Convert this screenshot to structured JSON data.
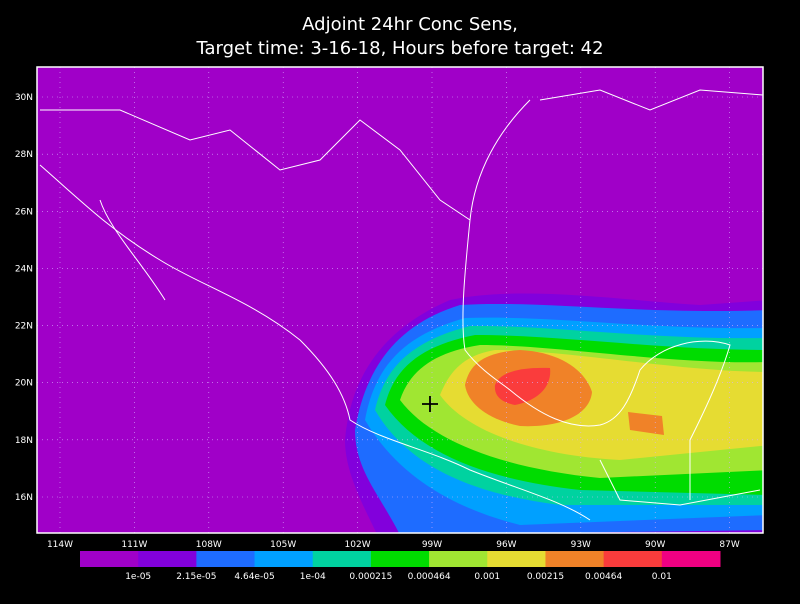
{
  "title": {
    "line1": "Adjoint 24hr Conc Sens,",
    "line2": "Target time: 3-16-18, Hours before target: 42"
  },
  "map": {
    "lat_labels": [
      "30N",
      "28N",
      "26N",
      "24N",
      "22N",
      "20N",
      "18N",
      "16N"
    ],
    "lon_labels": [
      "114W",
      "111W",
      "108W",
      "105W",
      "102W",
      "99W",
      "96W",
      "93W",
      "90W",
      "87W"
    ]
  },
  "colorbar": {
    "colors": [
      "#a000c8",
      "#8200dc",
      "#1e6cff",
      "#00a0ff",
      "#00d2a0",
      "#00dc00",
      "#a0e632",
      "#e6dc32",
      "#f08228",
      "#fa3c3c",
      "#f00082"
    ],
    "labels": [
      "1e-05",
      "2.15e-05",
      "4.64e-05",
      "1e-04",
      "0.000215",
      "0.000464",
      "0.001",
      "0.00215",
      "0.00464",
      "0.01"
    ]
  }
}
